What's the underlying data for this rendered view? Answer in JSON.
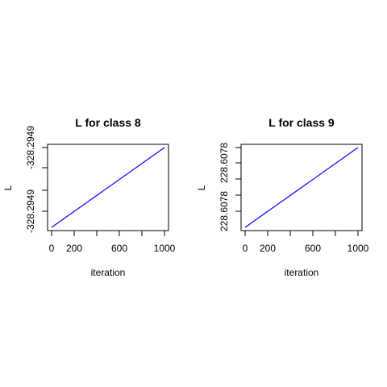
{
  "chart_data": [
    {
      "type": "line",
      "title": "L for class 8",
      "xlabel": "iteration",
      "ylabel": "L",
      "xlim": [
        0,
        1000
      ],
      "x_ticks": [
        0,
        200,
        600,
        1000
      ],
      "y_ticks": [
        "-328.2949",
        "-328.2949"
      ],
      "series": [
        {
          "x": [
            0,
            1000
          ],
          "y": [
            0,
            1
          ],
          "color": "#0000ff"
        }
      ]
    },
    {
      "type": "line",
      "title": "L for class 9",
      "xlabel": "iteration",
      "ylabel": "L",
      "xlim": [
        0,
        1000
      ],
      "x_ticks": [
        0,
        200,
        600,
        1000
      ],
      "y_ticks": [
        "228.6078",
        "228.6078"
      ],
      "series": [
        {
          "x": [
            0,
            1000
          ],
          "y": [
            0,
            1
          ],
          "color": "#0000ff"
        }
      ]
    }
  ]
}
